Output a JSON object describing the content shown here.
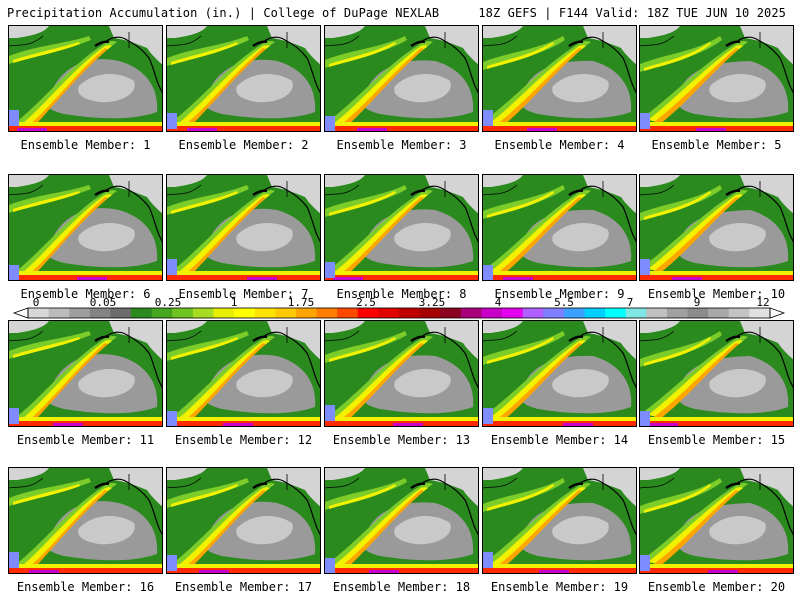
{
  "header": {
    "title": "Precipitation Accumulation (in.) | College of DuPage NEXLAB",
    "run_info": "18Z GEFS | F144 Valid: 18Z TUE JUN 10 2025"
  },
  "colorbar": {
    "tick_labels": [
      "0",
      "0.05",
      "0.25",
      "1",
      "1.75",
      "2.5",
      "3.25",
      "4",
      "5.5",
      "7",
      "9",
      "12"
    ],
    "colors": [
      "#d8d8d8",
      "#bcbcbc",
      "#9e9e9e",
      "#848484",
      "#6c6c6c",
      "#2a8a1d",
      "#46a61e",
      "#6fc421",
      "#a6dc22",
      "#e6f000",
      "#ffff00",
      "#ffe300",
      "#ffc800",
      "#ffa500",
      "#ff7d00",
      "#ff4800",
      "#ff0000",
      "#e00000",
      "#c00000",
      "#a40000",
      "#8a0020",
      "#a8007a",
      "#c800c8",
      "#e600f0",
      "#b060ff",
      "#8080ff",
      "#3ca0ff",
      "#00d0ff",
      "#00ffff",
      "#7fe6e6",
      "#c0c0c0",
      "#a0a0a0",
      "#8c8c8c",
      "#a8a8a8",
      "#c4c4c4",
      "#e0e0e0"
    ]
  },
  "panels": [
    {
      "caption": "Ensemble Member: 1"
    },
    {
      "caption": "Ensemble Member: 2"
    },
    {
      "caption": "Ensemble Member: 3"
    },
    {
      "caption": "Ensemble Member: 4"
    },
    {
      "caption": "Ensemble Member: 5"
    },
    {
      "caption": "Ensemble Member: 6"
    },
    {
      "caption": "Ensemble Member: 7"
    },
    {
      "caption": "Ensemble Member: 8"
    },
    {
      "caption": "Ensemble Member: 9"
    },
    {
      "caption": "Ensemble Member: 10"
    },
    {
      "caption": "Ensemble Member: 11"
    },
    {
      "caption": "Ensemble Member: 12"
    },
    {
      "caption": "Ensemble Member: 13"
    },
    {
      "caption": "Ensemble Member: 14"
    },
    {
      "caption": "Ensemble Member: 15"
    },
    {
      "caption": "Ensemble Member: 16"
    },
    {
      "caption": "Ensemble Member: 17"
    },
    {
      "caption": "Ensemble Member: 18"
    },
    {
      "caption": "Ensemble Member: 19"
    },
    {
      "caption": "Ensemble Member: 20"
    }
  ],
  "map_colors": {
    "dry_grey": "#9a9a9a",
    "light_grey": "#d4d4d4",
    "green": "#2a8a1d",
    "light_green": "#7ccc2a",
    "yellow": "#f2f200",
    "orange": "#ffa500",
    "red": "#ff2a00",
    "magenta": "#c800c8",
    "blue": "#7f8cff",
    "coast": "#000000"
  }
}
